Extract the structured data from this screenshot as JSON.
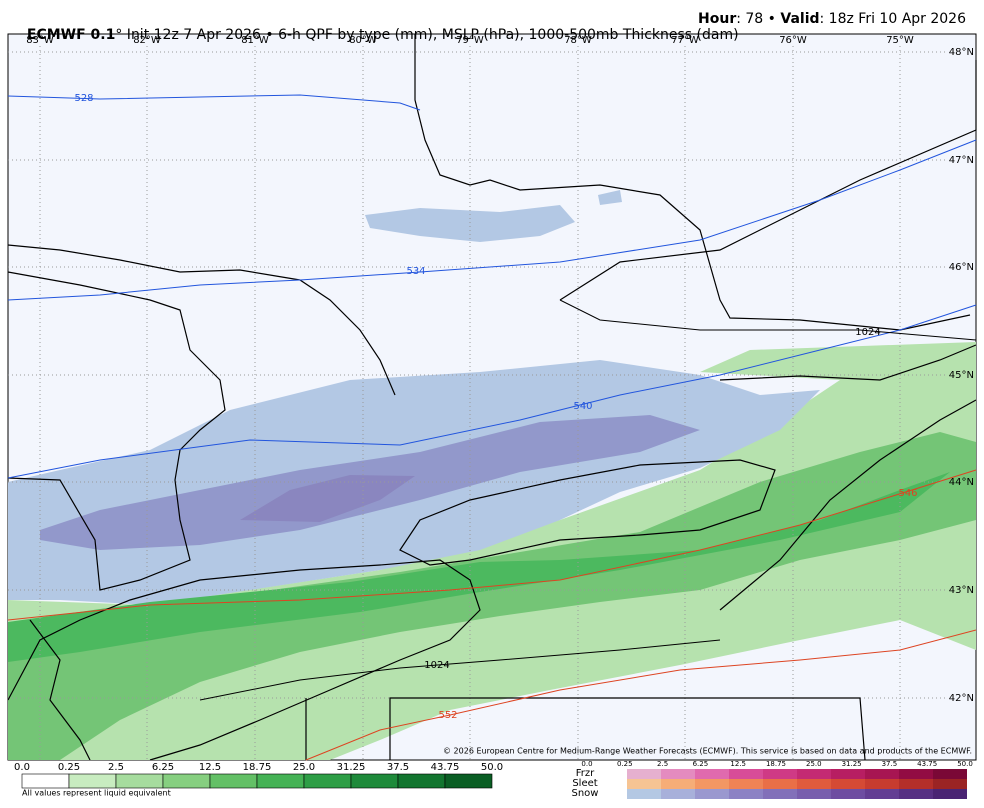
{
  "header": {
    "model": "ECMWF 0.1",
    "description": "° Init 12z 7 Apr 2026 • 6-h QPF by type (mm), MSLP (hPa), 1000-500mb Thickness (dam)",
    "hour_label": "Hour",
    "hour_value": ": 78 • ",
    "valid_label": "Valid",
    "valid_value": ": 18z Fri 10 Apr 2026"
  },
  "map": {
    "longitude_labels": [
      "83°W",
      "82°W",
      "81°W",
      "80°W",
      "79°W",
      "78°W",
      "77°W",
      "76°W",
      "75°W"
    ],
    "latitude_labels": [
      "48°N",
      "47°N",
      "46°N",
      "45°N",
      "44°N",
      "43°N",
      "42°N"
    ],
    "thickness_labels": [
      "528",
      "534",
      "540",
      "546",
      "552"
    ],
    "isobar_labels": [
      "1024",
      "1024"
    ],
    "copyright": "© 2026 European Centre for Medium-Range Weather Forecasts (ECMWF). This service is based on data and products of the ECMWF."
  },
  "legend": {
    "rain_ticks": [
      "0.0",
      "0.25",
      "2.5",
      "6.25",
      "12.5",
      "18.75",
      "25.0",
      "31.25",
      "37.5",
      "43.75",
      "50.0"
    ],
    "note": "All values represent liquid equivalent",
    "ptype_rows": [
      "Frzr",
      "Sleet",
      "Snow"
    ],
    "ptype_ticks": [
      "0.0",
      "0.25",
      "2.5",
      "6.25",
      "12.5",
      "18.75",
      "25.0",
      "31.25",
      "37.5",
      "43.75",
      "50.0"
    ]
  }
}
